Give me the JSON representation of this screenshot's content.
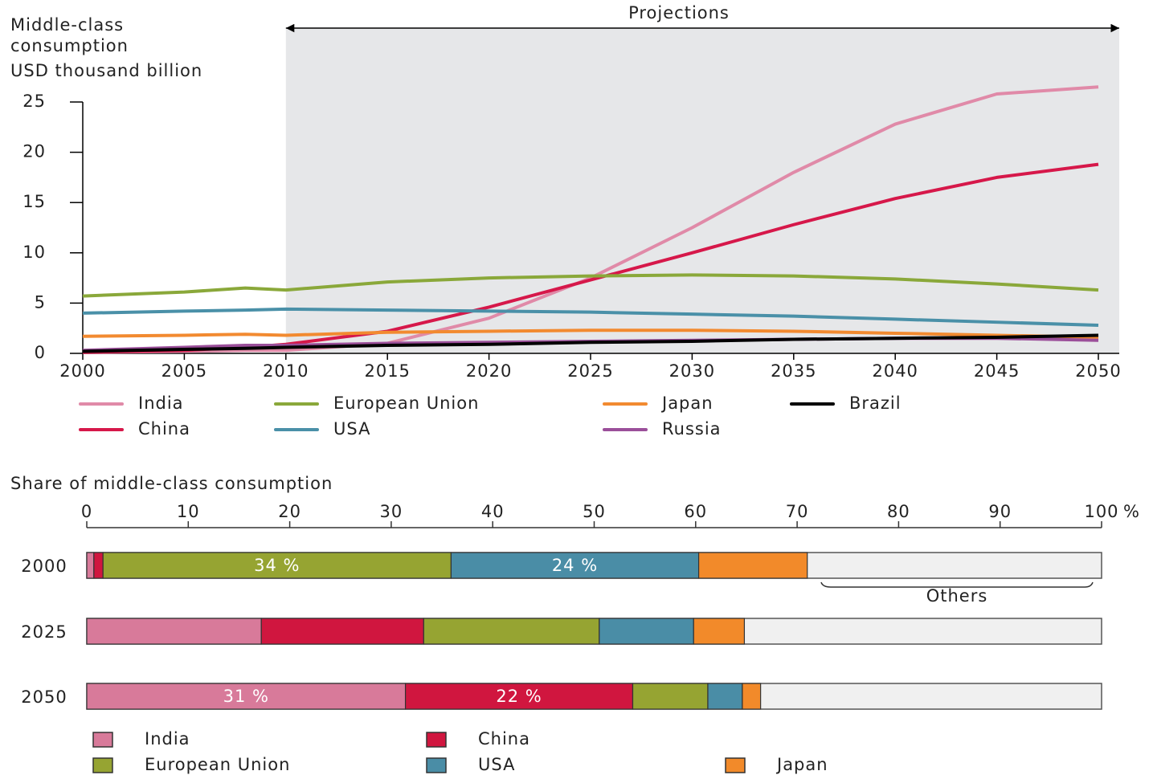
{
  "chart_data": [
    {
      "type": "line",
      "ylabel": [
        "Middle-class",
        "consumption",
        "USD thousand billion"
      ],
      "annotation": {
        "text": "Projections",
        "from": 2010
      },
      "x": [
        2000,
        2005,
        2008,
        2010,
        2015,
        2020,
        2025,
        2030,
        2035,
        2040,
        2045,
        2050
      ],
      "xlim": [
        2000,
        2050
      ],
      "xticks": [
        2000,
        2005,
        2010,
        2015,
        2020,
        2025,
        2030,
        2035,
        2040,
        2045,
        2050
      ],
      "ylim": [
        0,
        25
      ],
      "yticks": [
        0,
        5,
        10,
        15,
        20,
        25
      ],
      "series": [
        {
          "name": "India",
          "color": "#e08aa8",
          "values": [
            0.1,
            0.2,
            0.3,
            0.3,
            1.0,
            3.5,
            7.5,
            12.5,
            18.0,
            22.8,
            25.8,
            26.5
          ]
        },
        {
          "name": "China",
          "color": "#d6184a",
          "values": [
            0.1,
            0.3,
            0.6,
            0.9,
            2.2,
            4.6,
            7.3,
            10.0,
            12.8,
            15.4,
            17.5,
            18.8
          ]
        },
        {
          "name": "European Union",
          "color": "#8aa83a",
          "values": [
            5.7,
            6.1,
            6.5,
            6.3,
            7.1,
            7.5,
            7.7,
            7.8,
            7.7,
            7.4,
            6.9,
            6.3
          ]
        },
        {
          "name": "USA",
          "color": "#4a90a8",
          "values": [
            4.0,
            4.2,
            4.3,
            4.4,
            4.3,
            4.2,
            4.1,
            3.9,
            3.7,
            3.4,
            3.1,
            2.8
          ]
        },
        {
          "name": "Japan",
          "color": "#f28a30",
          "values": [
            1.7,
            1.8,
            1.9,
            1.8,
            2.1,
            2.2,
            2.3,
            2.3,
            2.2,
            2.0,
            1.8,
            1.6
          ]
        },
        {
          "name": "Russia",
          "color": "#9b4f9a",
          "values": [
            0.3,
            0.6,
            0.8,
            0.8,
            1.0,
            1.1,
            1.2,
            1.3,
            1.4,
            1.5,
            1.5,
            1.3
          ]
        },
        {
          "name": "Brazil",
          "color": "#000000",
          "values": [
            0.2,
            0.4,
            0.5,
            0.6,
            0.8,
            0.9,
            1.1,
            1.2,
            1.4,
            1.5,
            1.6,
            1.8
          ]
        }
      ]
    },
    {
      "type": "stacked_bar_horizontal",
      "title": "Share of middle-class consumption",
      "xlabel": "%",
      "annotation": "Others",
      "categories": [
        "2000",
        "2025",
        "2050"
      ],
      "xlim": [
        0,
        100
      ],
      "xticks": [
        0,
        10,
        20,
        30,
        40,
        50,
        60,
        70,
        80,
        90,
        100
      ],
      "series": [
        {
          "name": "India",
          "color": "#d87a9a",
          "values": [
            0.7,
            17.2,
            31.4
          ],
          "value_labels": [
            null,
            null,
            "31 %"
          ]
        },
        {
          "name": "China",
          "color": "#d0163f",
          "values": [
            0.9,
            16.0,
            22.4
          ],
          "value_labels": [
            null,
            null,
            "22 %"
          ]
        },
        {
          "name": "European Union",
          "color": "#96a432",
          "values": [
            34.3,
            17.3,
            7.4
          ],
          "value_labels": [
            "34 %",
            null,
            null
          ]
        },
        {
          "name": "USA",
          "color": "#4a8da6",
          "values": [
            24.4,
            9.3,
            3.4
          ],
          "value_labels": [
            "24 %",
            null,
            null
          ]
        },
        {
          "name": "Japan",
          "color": "#f28a2a",
          "values": [
            10.7,
            5.0,
            1.8
          ]
        }
      ]
    }
  ]
}
